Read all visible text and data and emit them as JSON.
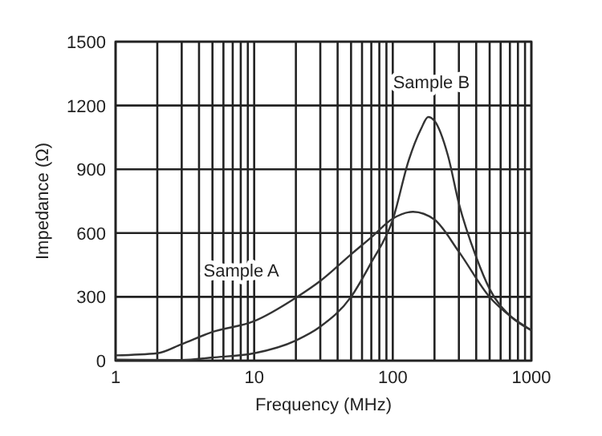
{
  "chart_data": {
    "type": "line",
    "xlabel": "Frequency (MHz)",
    "ylabel": "Impedance (Ω)",
    "log": "x",
    "grid": true,
    "xlim": [
      1,
      1000
    ],
    "ylim": [
      0,
      1500
    ],
    "xticks": [
      1,
      {
        "value": 2,
        "label": null
      },
      {
        "value": 3,
        "label": null
      },
      {
        "value": 4,
        "label": null
      },
      {
        "value": 5,
        "label": null
      },
      {
        "value": 6,
        "label": null
      },
      {
        "value": 7,
        "label": null
      },
      {
        "value": 8,
        "label": null
      },
      {
        "value": 9,
        "label": null
      },
      10,
      {
        "value": 20,
        "label": null
      },
      {
        "value": 30,
        "label": null
      },
      {
        "value": 40,
        "label": null
      },
      {
        "value": 50,
        "label": null
      },
      {
        "value": 60,
        "label": null
      },
      {
        "value": 70,
        "label": null
      },
      {
        "value": 80,
        "label": null
      },
      {
        "value": 90,
        "label": null
      },
      100,
      {
        "value": 200,
        "label": null
      },
      {
        "value": 300,
        "label": null
      },
      {
        "value": 400,
        "label": null
      },
      {
        "value": 500,
        "label": null
      },
      {
        "value": 600,
        "label": null
      },
      {
        "value": 700,
        "label": null
      },
      {
        "value": 800,
        "label": null
      },
      {
        "value": 900,
        "label": null
      },
      1000
    ],
    "yticks": [
      0,
      300,
      600,
      900,
      1200,
      1500
    ],
    "series": [
      {
        "name": "Sample A",
        "color": "#333333",
        "x": [
          1,
          2,
          3,
          5,
          10,
          20,
          30,
          50,
          70,
          100,
          140,
          200,
          300,
          500,
          700,
          1000
        ],
        "values": [
          25,
          35,
          78,
          135,
          186,
          296,
          375,
          500,
          580,
          668,
          700,
          663,
          512,
          299,
          211,
          143
        ]
      },
      {
        "name": "Sample B",
        "color": "#333333",
        "x": [
          1,
          3,
          5,
          10,
          20,
          30,
          50,
          70,
          100,
          130,
          160,
          180,
          200,
          250,
          300,
          400,
          500,
          700,
          1000
        ],
        "values": [
          5,
          3,
          15,
          35,
          95,
          160,
          300,
          462,
          663,
          940,
          1090,
          1146,
          1128,
          965,
          739,
          487,
          337,
          211,
          143
        ]
      }
    ]
  }
}
